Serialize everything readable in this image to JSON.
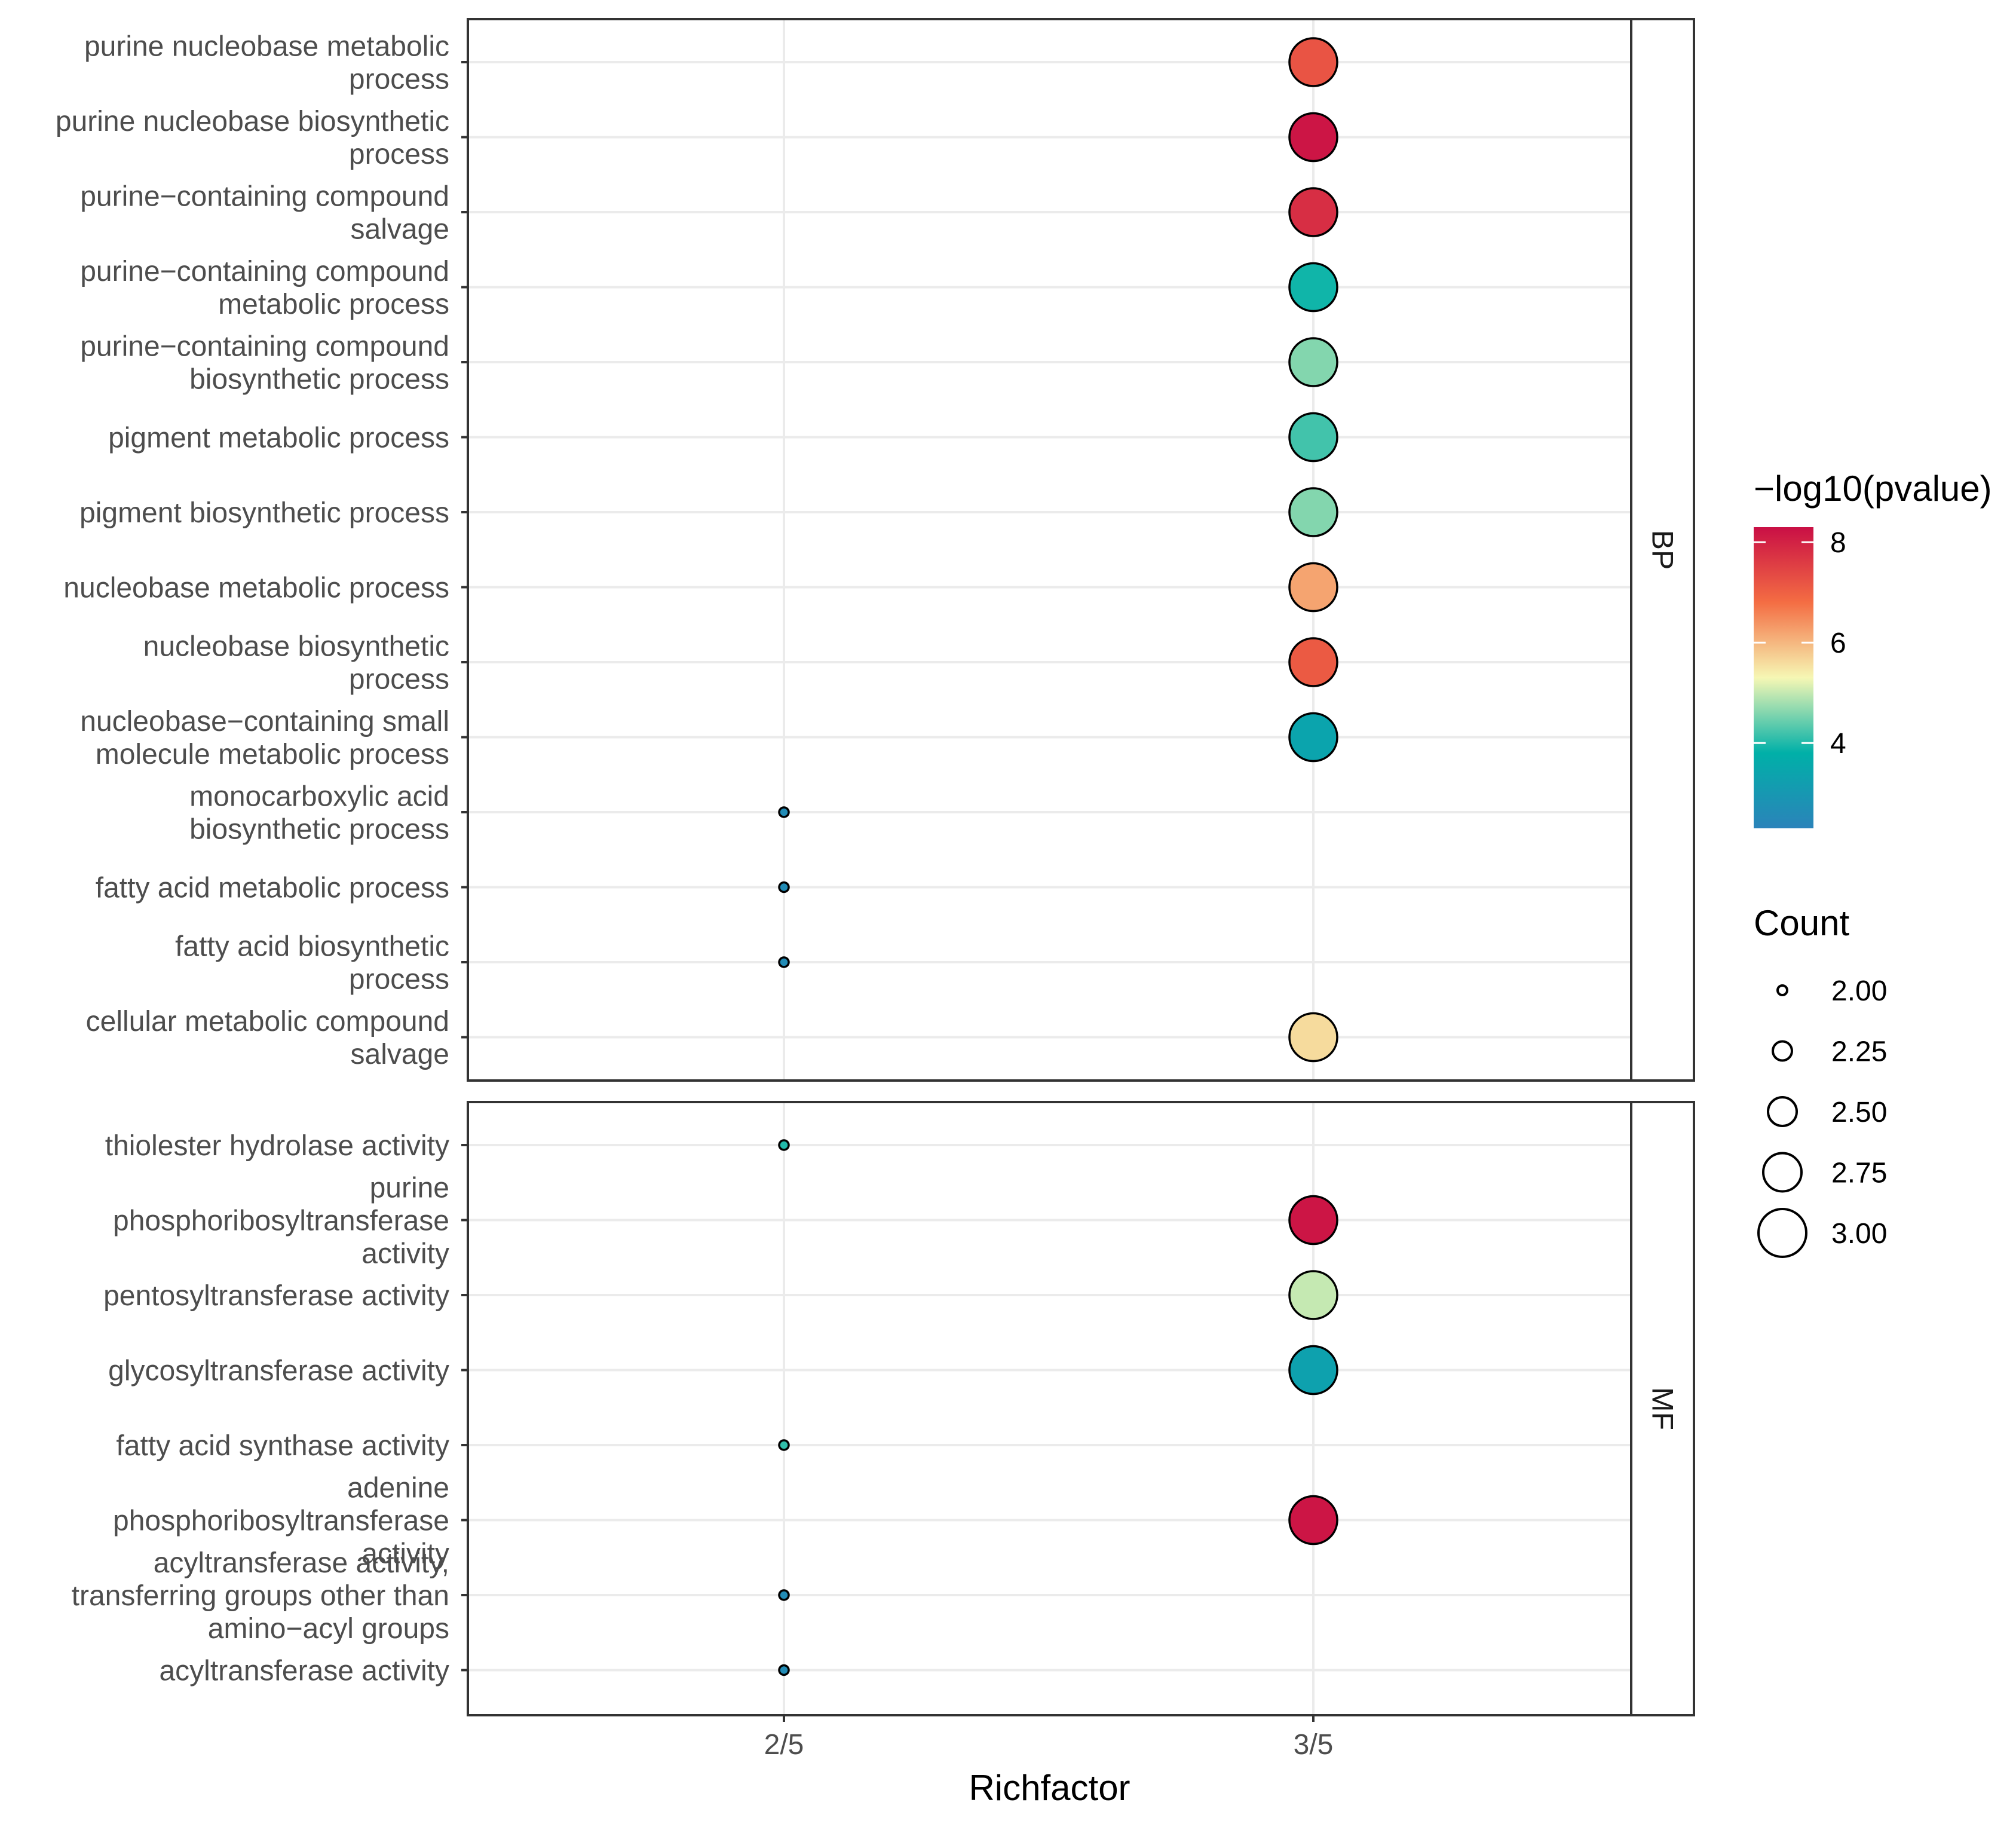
{
  "chart_data": {
    "type": "scatter",
    "xlabel": "Richfactor",
    "x_ticks": [
      "2/5",
      "3/5"
    ],
    "color_legend": {
      "title": "−log10(pvalue)",
      "ticks": [
        8,
        6,
        4
      ],
      "range": [
        2.3,
        8.3
      ]
    },
    "size_legend": {
      "title": "Count",
      "labels": [
        "2.00",
        "2.25",
        "2.50",
        "2.75",
        "3.00"
      ],
      "values": [
        2.0,
        2.25,
        2.5,
        2.75,
        3.0
      ]
    },
    "panels": [
      {
        "name": "BP",
        "rows": [
          {
            "label": [
              "purine nucleobase metabolic",
              "process"
            ],
            "x": "3/5",
            "count": 3,
            "pvalue": 7.2
          },
          {
            "label": [
              "purine nucleobase biosynthetic",
              "process"
            ],
            "x": "3/5",
            "count": 3,
            "pvalue": 8.2
          },
          {
            "label": [
              "purine−containing compound",
              "salvage"
            ],
            "x": "3/5",
            "count": 3,
            "pvalue": 7.8
          },
          {
            "label": [
              "purine−containing compound",
              "metabolic process"
            ],
            "x": "3/5",
            "count": 3,
            "pvalue": 3.9
          },
          {
            "label": [
              "purine−containing compound",
              "biosynthetic process"
            ],
            "x": "3/5",
            "count": 3,
            "pvalue": 4.6
          },
          {
            "label": [
              "pigment metabolic process"
            ],
            "x": "3/5",
            "count": 3,
            "pvalue": 4.2
          },
          {
            "label": [
              "pigment biosynthetic process"
            ],
            "x": "3/5",
            "count": 3,
            "pvalue": 4.6
          },
          {
            "label": [
              "nucleobase metabolic process"
            ],
            "x": "3/5",
            "count": 3,
            "pvalue": 6.2
          },
          {
            "label": [
              "nucleobase biosynthetic",
              "process"
            ],
            "x": "3/5",
            "count": 3,
            "pvalue": 7.1
          },
          {
            "label": [
              "nucleobase−containing small",
              "molecule metabolic process"
            ],
            "x": "3/5",
            "count": 3,
            "pvalue": 3.4
          },
          {
            "label": [
              "monocarboxylic acid",
              "biosynthetic process"
            ],
            "x": "2/5",
            "count": 2,
            "pvalue": 2.6
          },
          {
            "label": [
              "fatty acid metabolic process"
            ],
            "x": "2/5",
            "count": 2,
            "pvalue": 2.6
          },
          {
            "label": [
              "fatty acid biosynthetic",
              "process"
            ],
            "x": "2/5",
            "count": 2,
            "pvalue": 2.6
          },
          {
            "label": [
              "cellular metabolic compound",
              "salvage"
            ],
            "x": "3/5",
            "count": 3,
            "pvalue": 5.6
          }
        ]
      },
      {
        "name": "MF",
        "rows": [
          {
            "label": [
              "thiolester hydrolase activity"
            ],
            "x": "2/5",
            "count": 2,
            "pvalue": 4.0
          },
          {
            "label": [
              "purine",
              "phosphoribosyltransferase",
              "activity"
            ],
            "x": "3/5",
            "count": 3,
            "pvalue": 8.2
          },
          {
            "label": [
              "pentosyltransferase activity"
            ],
            "x": "3/5",
            "count": 3,
            "pvalue": 5.0
          },
          {
            "label": [
              "glycosyltransferase activity"
            ],
            "x": "3/5",
            "count": 3,
            "pvalue": 3.3
          },
          {
            "label": [
              "fatty acid synthase activity"
            ],
            "x": "2/5",
            "count": 2,
            "pvalue": 4.1
          },
          {
            "label": [
              "adenine",
              "phosphoribosyltransferase",
              "activity"
            ],
            "x": "3/5",
            "count": 3,
            "pvalue": 8.2
          },
          {
            "label": [
              "acyltransferase activity,",
              "transferring groups other than",
              "amino−acyl groups"
            ],
            "x": "2/5",
            "count": 2,
            "pvalue": 2.6
          },
          {
            "label": [
              "acyltransferase activity"
            ],
            "x": "2/5",
            "count": 2,
            "pvalue": 2.6
          }
        ]
      }
    ]
  }
}
